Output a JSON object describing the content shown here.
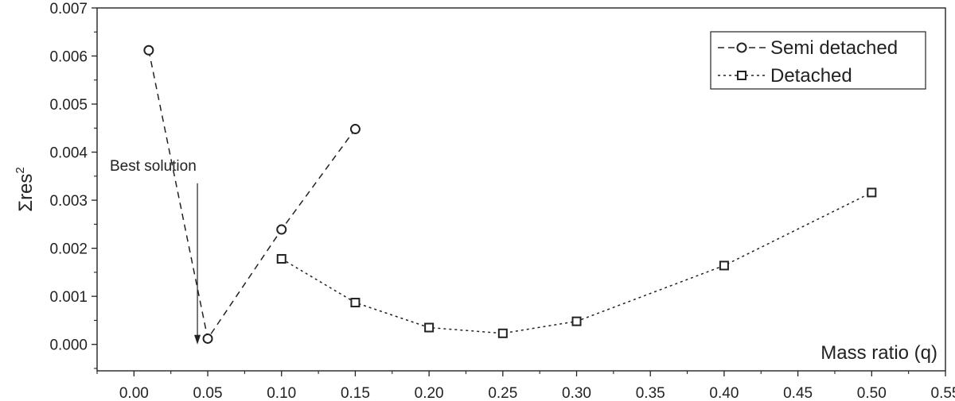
{
  "chart_data": {
    "type": "line",
    "xlabel": "Mass ratio (q)",
    "ylabel_base": "Σres",
    "ylabel_sup": "2",
    "xlim": [
      -0.025,
      0.55
    ],
    "ylim": [
      -0.00055,
      0.007
    ],
    "x_ticks": [
      0.0,
      0.05,
      0.1,
      0.15,
      0.2,
      0.25,
      0.3,
      0.35,
      0.4,
      0.45,
      0.5,
      0.55
    ],
    "x_tick_labels": [
      "0.00",
      "0.05",
      "0.10",
      "0.15",
      "0.20",
      "0.25",
      "0.30",
      "0.35",
      "0.40",
      "0.45",
      "0.50",
      "0.55"
    ],
    "y_ticks": [
      0.0,
      0.001,
      0.002,
      0.003,
      0.004,
      0.005,
      0.006,
      0.007
    ],
    "y_tick_labels": [
      "0.000",
      "0.001",
      "0.002",
      "0.003",
      "0.004",
      "0.005",
      "0.006",
      "0.007"
    ],
    "grid": false,
    "legend_position": "top-right",
    "series": [
      {
        "name": "Semi detached",
        "marker": "circle",
        "line_style": "dashed",
        "x": [
          0.01,
          0.05,
          0.1,
          0.15
        ],
        "y": [
          0.00612,
          0.00012,
          0.00239,
          0.00448
        ]
      },
      {
        "name": "Detached",
        "marker": "square",
        "line_style": "dotted",
        "x": [
          0.1,
          0.15,
          0.2,
          0.25,
          0.3,
          0.4,
          0.5
        ],
        "y": [
          0.00178,
          0.00087,
          0.00035,
          0.00023,
          0.00048,
          0.00164,
          0.00316
        ]
      }
    ],
    "annotations": [
      {
        "text": "Best solution",
        "arrow_x": 0.043,
        "arrow_from_y": 0.00335,
        "arrow_to_y": 0.0
      }
    ]
  }
}
